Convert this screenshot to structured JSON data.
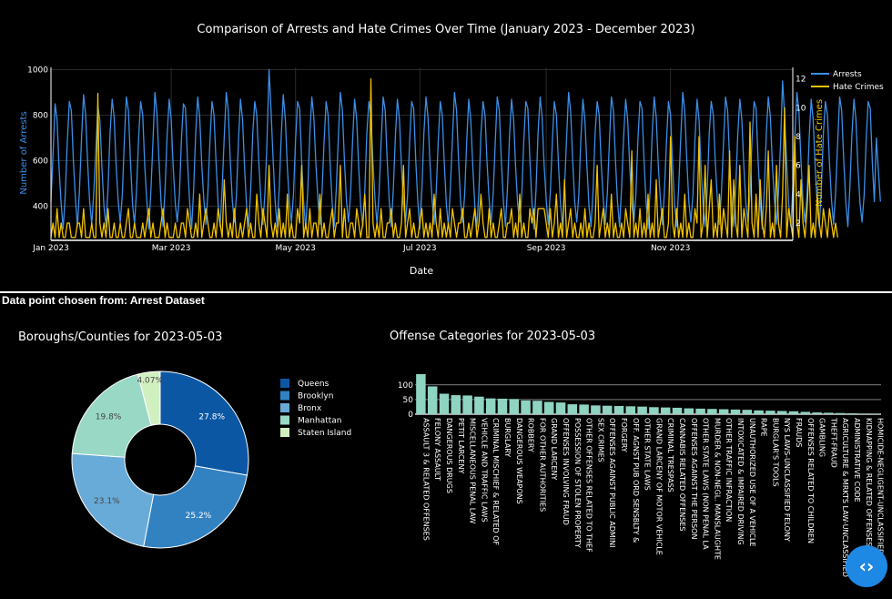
{
  "selection_caption": "Data point chosen from: Arrest Dataset",
  "nav_button_glyph": "‹›",
  "nav_button_icon": "code-chevrons-icon",
  "chart_data": [
    {
      "type": "line",
      "title": "Comparison of Arrests and Hate Crimes Over Time (January 2023 - December 2023)",
      "xlabel": "Date",
      "ylabel": "Number of Arrests",
      "y2label": "Number of Hate Crimes",
      "x_ticks": [
        "Jan 2023",
        "Mar 2023",
        "May 2023",
        "Jul 2023",
        "Sep 2023",
        "Nov 2023"
      ],
      "x_range": [
        "2023-01-01",
        "2023-12-31"
      ],
      "ylim": [
        250,
        1010
      ],
      "y_ticks": [
        400,
        600,
        800,
        1000
      ],
      "y2lim": [
        0.8,
        12.8
      ],
      "y2_ticks": [
        2,
        4,
        6,
        8,
        10,
        12
      ],
      "legend_position": "top-right",
      "series": [
        {
          "name": "Arrests",
          "axis": "left",
          "color": "#3b8fe8",
          "start_date": "2023-01-01",
          "values": [
            420,
            620,
            850,
            780,
            560,
            410,
            300,
            450,
            680,
            860,
            820,
            600,
            430,
            310,
            470,
            700,
            890,
            800,
            590,
            420,
            320,
            460,
            650,
            840,
            780,
            570,
            400,
            310,
            480,
            720,
            870,
            790,
            580,
            420,
            330,
            450,
            690,
            880,
            820,
            600,
            410,
            320,
            470,
            700,
            860,
            800,
            580,
            430,
            300,
            460,
            680,
            900,
            810,
            600,
            420,
            310,
            480,
            710,
            870,
            780,
            570,
            410,
            330,
            450,
            690,
            850,
            830,
            600,
            420,
            300,
            470,
            720,
            880,
            790,
            580,
            430,
            320,
            460,
            680,
            860,
            800,
            590,
            410,
            310,
            480,
            700,
            900,
            820,
            600,
            420,
            330,
            450,
            690,
            870,
            780,
            570,
            400,
            310,
            470,
            720,
            860,
            800,
            590,
            430,
            320,
            460,
            680,
            1000,
            820,
            600,
            420,
            310,
            480,
            710,
            890,
            780,
            570,
            410,
            330,
            450,
            690,
            860,
            830,
            600,
            420,
            300,
            470,
            720,
            880,
            790,
            580,
            430,
            320,
            460,
            680,
            860,
            800,
            590,
            410,
            310,
            480,
            700,
            900,
            820,
            600,
            420,
            330,
            450,
            690,
            870,
            780,
            570,
            400,
            310,
            470,
            720,
            860,
            800,
            590,
            430,
            320,
            460,
            680,
            880,
            820,
            600,
            420,
            310,
            480,
            710,
            870,
            780,
            570,
            410,
            330,
            450,
            690,
            860,
            830,
            600,
            420,
            300,
            470,
            720,
            880,
            790,
            580,
            430,
            320,
            460,
            680,
            860,
            800,
            590,
            410,
            310,
            480,
            700,
            900,
            820,
            600,
            420,
            330,
            450,
            690,
            870,
            780,
            570,
            400,
            310,
            470,
            720,
            860,
            800,
            590,
            430,
            320,
            460,
            680,
            880,
            820,
            600,
            420,
            310,
            480,
            710,
            870,
            780,
            570,
            410,
            330,
            450,
            690,
            860,
            830,
            600,
            420,
            300,
            470,
            720,
            880,
            790,
            580,
            430,
            320,
            460,
            680,
            860,
            800,
            590,
            410,
            310,
            480,
            700,
            900,
            820,
            600,
            420,
            330,
            450,
            690,
            870,
            780,
            570,
            400,
            310,
            470,
            720,
            860,
            800,
            590,
            430,
            320,
            460,
            680,
            880,
            820,
            600,
            420,
            310,
            480,
            710,
            870,
            780,
            570,
            410,
            330,
            450,
            690,
            860,
            830,
            600,
            420,
            300,
            470,
            720,
            880,
            790,
            580,
            430,
            320,
            460,
            680,
            860,
            800,
            590,
            410,
            310,
            480,
            700,
            900,
            820,
            600,
            420,
            330,
            450,
            690,
            870,
            780,
            570,
            400,
            310,
            470,
            720,
            860,
            800,
            590,
            430,
            320,
            460,
            680,
            880,
            820,
            600,
            420,
            310,
            480,
            710,
            870,
            780,
            570,
            410,
            330,
            450,
            690,
            860,
            830,
            600,
            420,
            300,
            470,
            720,
            880,
            790,
            580,
            430,
            320,
            460,
            680,
            950,
            800,
            590,
            410,
            310,
            480,
            700,
            900,
            820,
            600,
            420,
            330,
            450,
            690,
            870,
            780,
            570,
            400,
            310,
            470,
            720,
            860,
            800,
            590,
            430,
            320,
            460,
            680,
            880,
            820,
            600,
            420,
            310,
            480,
            710,
            870,
            780,
            570,
            410,
            330,
            450,
            690,
            860,
            830,
            600,
            420,
            700,
            560,
            420
          ]
        },
        {
          "name": "Hate Crimes",
          "axis": "right",
          "color": "#f2c200",
          "start_date": "2023-01-01",
          "values": [
            1,
            2,
            1,
            3,
            1,
            2,
            1,
            1,
            2,
            2,
            1,
            1,
            1,
            2,
            2,
            1,
            3,
            1,
            1,
            1,
            2,
            1,
            1,
            11,
            2,
            1,
            2,
            1,
            3,
            1,
            1,
            2,
            1,
            1,
            2,
            1,
            1,
            2,
            3,
            1,
            1,
            2,
            1,
            1,
            1,
            2,
            1,
            2,
            3,
            1,
            2,
            1,
            1,
            1,
            2,
            3,
            1,
            2,
            1,
            1,
            1,
            2,
            1,
            1,
            2,
            2,
            1,
            3,
            2,
            1,
            1,
            2,
            1,
            4,
            1,
            2,
            3,
            2,
            1,
            1,
            2,
            1,
            3,
            2,
            1,
            5,
            2,
            1,
            2,
            1,
            3,
            1,
            1,
            2,
            1,
            2,
            3,
            1,
            2,
            1,
            1,
            4,
            2,
            1,
            3,
            2,
            1,
            6,
            2,
            1,
            2,
            1,
            3,
            1,
            2,
            1,
            4,
            1,
            2,
            1,
            1,
            3,
            2,
            6,
            1,
            2,
            1,
            3,
            1,
            2,
            2,
            1,
            4,
            1,
            2,
            1,
            1,
            2,
            3,
            1,
            2,
            2,
            6,
            1,
            3,
            1,
            1,
            2,
            2,
            1,
            3,
            2,
            1,
            2,
            4,
            1,
            1,
            12,
            2,
            1,
            2,
            1,
            3,
            1,
            1,
            2,
            2,
            3,
            1,
            2,
            1,
            1,
            2,
            6,
            1,
            2,
            3,
            1,
            2,
            1,
            1,
            2,
            3,
            1,
            2,
            1,
            2,
            1,
            4,
            2,
            1,
            3,
            1,
            2,
            1,
            2,
            1,
            3,
            2,
            1,
            2,
            2,
            3,
            1,
            1,
            2,
            1,
            2,
            3,
            1,
            2,
            4,
            2,
            1,
            1,
            3,
            1,
            2,
            1,
            1,
            2,
            3,
            1,
            1,
            2,
            2,
            3,
            1,
            2,
            1,
            4,
            1,
            2,
            1,
            1,
            3,
            2,
            3,
            1,
            3,
            3,
            3,
            3,
            2,
            1,
            3,
            1,
            2,
            4,
            1,
            2,
            1,
            5,
            1,
            2,
            3,
            1,
            2,
            1,
            1,
            2,
            1,
            3,
            1,
            2,
            1,
            1,
            2,
            6,
            1,
            2,
            3,
            1,
            2,
            1,
            4,
            1,
            2,
            1,
            1,
            2,
            1,
            3,
            2,
            1,
            7,
            1,
            2,
            1,
            3,
            1,
            2,
            1,
            4,
            1,
            2,
            1,
            5,
            1,
            2,
            3,
            1,
            1,
            2,
            8,
            2,
            1,
            3,
            1,
            2,
            1,
            4,
            1,
            2,
            1,
            1,
            3,
            2,
            8,
            1,
            2,
            6,
            1,
            3,
            5,
            1,
            2,
            1,
            4,
            1,
            3,
            2,
            1,
            7,
            1,
            5,
            2,
            1,
            6,
            1,
            3,
            2,
            1,
            9,
            2,
            1,
            4,
            1,
            5,
            2,
            1,
            3,
            7,
            1,
            2,
            1,
            6,
            2,
            1,
            4,
            10,
            1,
            3,
            2,
            1,
            8,
            2,
            1,
            5,
            2,
            1,
            3,
            6,
            1,
            2,
            1,
            4,
            2,
            1,
            3,
            2,
            1,
            3,
            2,
            1,
            2,
            1
          ]
        }
      ]
    },
    {
      "type": "pie",
      "hole": true,
      "title": "Boroughs/Counties for 2023-05-03",
      "labels": [
        "Queens",
        "Brooklyn",
        "Bronx",
        "Manhattan",
        "Staten Island"
      ],
      "values": [
        27.8,
        25.2,
        23.1,
        19.8,
        4.07
      ],
      "value_labels": [
        "27.8%",
        "25.2%",
        "23.1%",
        "19.8%",
        "4.07%"
      ],
      "colors": [
        "#0c57a4",
        "#3282c2",
        "#69abd8",
        "#9ad8c6",
        "#d1f0c0"
      ],
      "legend_position": "right"
    },
    {
      "type": "bar",
      "title": "Offense Categories for 2023-05-03",
      "color": "#8fd3c1",
      "ylim": [
        0,
        140
      ],
      "y_ticks": [
        0,
        50,
        100
      ],
      "categories": [
        "ASSAULT 3 & RELATED OFFENSES",
        "FELONY ASSAULT",
        "DANGEROUS DRUGS",
        "PETIT LARCENY",
        "MISCELLANEOUS PENAL LAW",
        "VEHICLE AND TRAFFIC LAWS",
        "CRIMINAL MISCHIEF & RELATED OF",
        "BURGLARY",
        "DANGEROUS WEAPONS",
        "ROBBERY",
        "FOR OTHER AUTHORITIES",
        "GRAND LARCENY",
        "OFFENSES INVOLVING FRAUD",
        "POSSESSION OF STOLEN PROPERTY",
        "OTHER OFFENSES RELATED TO THEF",
        "SEX CRIMES",
        "OFFENSES AGAINST PUBLIC ADMINI",
        "FORGERY",
        "OFF. AGNST PUB ORD SENSBLTY &",
        "OTHER STATE LAWS",
        "GRAND LARCENY OF MOTOR VEHICLE",
        "CRIMINAL TRESPASS",
        "CANNABIS RELATED OFFENSES",
        "OFFENSES AGAINST THE PERSON",
        "OTHER STATE LAWS (NON PENAL LA",
        "MURDER & NON-NEGL. MANSLAUGHTE",
        "OTHER TRAFFIC INFRACTION",
        "INTOXICATED & IMPAIRED DRIVING",
        "UNAUTHORIZED USE OF A VEHICLE",
        "RAPE",
        "BURGLAR'S TOOLS",
        "NYS LAWS-UNCLASSIFIED FELONY",
        "FRAUDS",
        "OFFENSES RELATED TO CHILDREN",
        "GAMBLING",
        "THEFT-FRAUD",
        "AGRICULTURE & MRKTS LAW-UNCLASSIFIED",
        "ADMINISTRATIVE CODE",
        "KIDNAPPING & RELATED OFFENSES",
        "HOMICIDE-NEGLIGENT-UNCLASSIFIED"
      ],
      "values": [
        137,
        95,
        70,
        65,
        64,
        60,
        54,
        53,
        52,
        47,
        46,
        42,
        40,
        34,
        33,
        30,
        29,
        28,
        27,
        26,
        24,
        23,
        22,
        20,
        19,
        18,
        17,
        16,
        15,
        13,
        12,
        11,
        10,
        8,
        6,
        5,
        4,
        3,
        2,
        1
      ]
    }
  ]
}
